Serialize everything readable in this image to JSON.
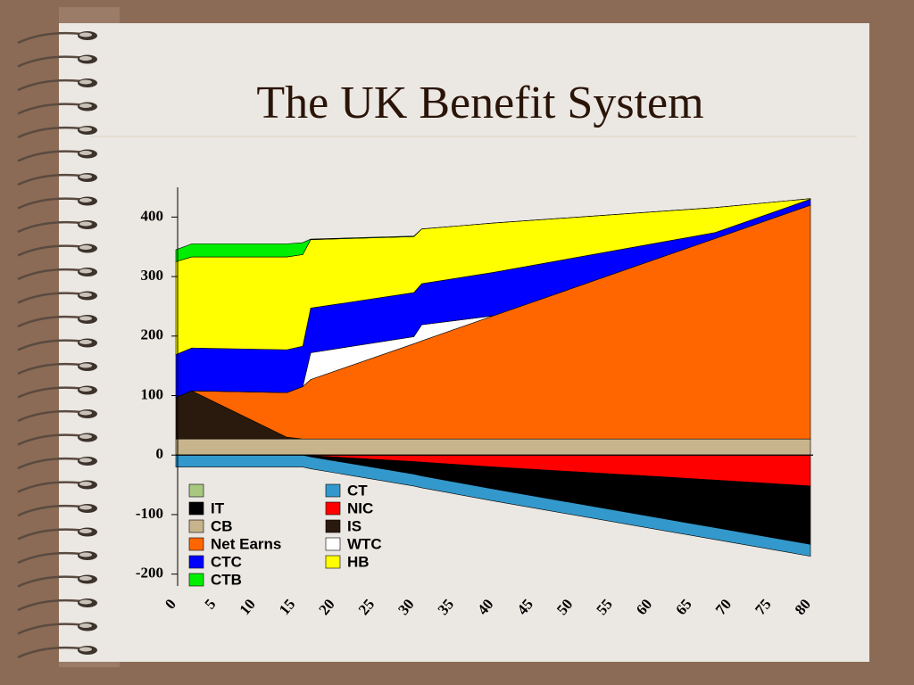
{
  "chart_data": {
    "type": "stacked_area",
    "title": "The UK Benefit System",
    "x": [
      0,
      2,
      14,
      16,
      17,
      30,
      31,
      40,
      68,
      80
    ],
    "series": [
      {
        "name": "CB",
        "color": "#c8b48c",
        "values": [
          27,
          27,
          27,
          27,
          27,
          27,
          27,
          27,
          27,
          27
        ]
      },
      {
        "name": "IS",
        "color": "#2a1a0e",
        "values": [
          70,
          81,
          3,
          0,
          0,
          0,
          0,
          0,
          0,
          0
        ]
      },
      {
        "name": "Net Earns",
        "color": "#ff6600",
        "values": [
          0,
          0,
          75,
          88,
          100,
          160,
          165,
          207,
          337,
          393
        ]
      },
      {
        "name": "WTC",
        "color": "#ffffff",
        "values": [
          0,
          0,
          0,
          0,
          45,
          12,
          27,
          0,
          0,
          0
        ]
      },
      {
        "name": "CTC",
        "color": "#0000ff",
        "values": [
          72,
          72,
          72,
          68,
          75,
          74,
          69,
          73,
          10,
          10
        ]
      },
      {
        "name": "HB",
        "color": "#ffff00",
        "values": [
          156,
          153,
          156,
          154,
          115,
          94,
          92,
          83,
          42,
          1
        ]
      },
      {
        "name": "CTB",
        "color": "#00ee00",
        "values": [
          20,
          22,
          22,
          20,
          1,
          1,
          0,
          0,
          0,
          0
        ]
      },
      {
        "name": "NIC",
        "color": "#ff0000",
        "values": [
          0,
          0,
          0,
          0,
          -1,
          -11,
          -12,
          -20,
          -42,
          -52
        ]
      },
      {
        "name": "IT",
        "color": "#000000",
        "values": [
          0,
          0,
          0,
          0,
          -2,
          -21,
          -23,
          -37,
          -80,
          -98
        ]
      },
      {
        "name": "CT",
        "color": "#3399cc",
        "values": [
          -20,
          -20,
          -20,
          -20,
          -20,
          -20,
          -20,
          -20,
          -20,
          -20
        ]
      }
    ],
    "xlim": [
      0,
      80
    ],
    "xticks": [
      0,
      5,
      10,
      15,
      20,
      25,
      30,
      35,
      40,
      45,
      50,
      55,
      60,
      65,
      70,
      75,
      80
    ],
    "ylim": [
      -220,
      450
    ],
    "yticks": [
      -200,
      -100,
      0,
      100,
      200,
      300,
      400
    ]
  }
}
